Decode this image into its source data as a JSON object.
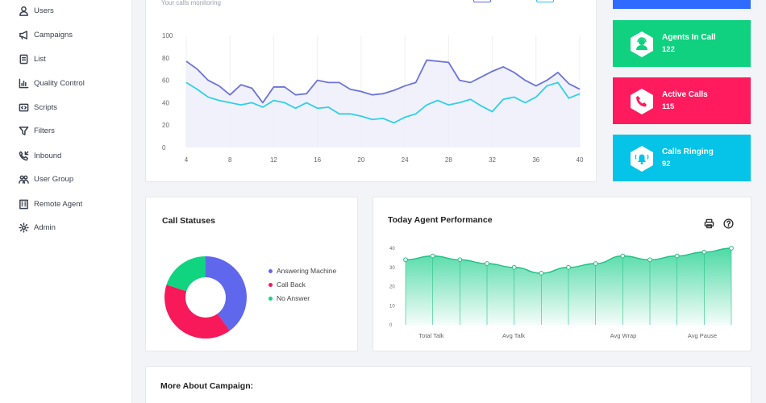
{
  "sidebar": {
    "items": [
      {
        "label": "Users",
        "icon": "user-icon"
      },
      {
        "label": "Campaigns",
        "icon": "megaphone-icon"
      },
      {
        "label": "List",
        "icon": "list-icon"
      },
      {
        "label": "Quality Control",
        "icon": "bar-chart-icon"
      },
      {
        "label": "Scripts",
        "icon": "code-icon"
      },
      {
        "label": "Filters",
        "icon": "filter-icon"
      },
      {
        "label": "Inbound",
        "icon": "phone-in-icon"
      },
      {
        "label": "User Group",
        "icon": "group-icon"
      },
      {
        "label": "Remote Agent",
        "icon": "building-icon"
      },
      {
        "label": "Admin",
        "icon": "gear-icon"
      }
    ]
  },
  "monitor": {
    "subtitle": "Your calls monitoring"
  },
  "tiles": [
    {
      "label": "Agents In Call",
      "value": "122",
      "color": "#0fd17f",
      "icon": "agent-icon"
    },
    {
      "label": "Active Calls",
      "value": "115",
      "color": "#ff1b5e",
      "icon": "phone-icon"
    },
    {
      "label": "Calls Ringing",
      "value": "92",
      "color": "#06c3e8",
      "icon": "bell-ringing-icon"
    }
  ],
  "top_tile_color": "#2f6bff",
  "status": {
    "title": "Call Statuses"
  },
  "performance": {
    "title": "Today Agent Performance"
  },
  "campaign": {
    "title": "More About Campaign:"
  },
  "chart_data": [
    {
      "type": "line",
      "ylim": [
        0,
        100
      ],
      "y_ticks": [
        "0",
        "20",
        "40",
        "60",
        "80",
        "100"
      ],
      "xlim": [
        4,
        40
      ],
      "x_ticks": [
        "4",
        "8",
        "12",
        "16",
        "20",
        "24",
        "28",
        "32",
        "36",
        "40"
      ],
      "grid": "vertical",
      "x": [
        4,
        5,
        6,
        7,
        8,
        9,
        10,
        11,
        12,
        13,
        14,
        15,
        16,
        17,
        18,
        19,
        20,
        21,
        22,
        23,
        24,
        25,
        26,
        27,
        28,
        29,
        30,
        31,
        32,
        33,
        34,
        35,
        36,
        37,
        38,
        39,
        40
      ],
      "series": [
        {
          "color": "#6c74d8",
          "values": [
            77,
            70,
            60,
            55,
            47,
            56,
            53,
            40,
            54,
            54,
            47,
            48,
            60,
            58,
            58,
            52,
            50,
            47,
            48,
            51,
            55,
            58,
            78,
            77,
            76,
            60,
            58,
            63,
            68,
            72,
            67,
            60,
            55,
            60,
            67,
            57,
            52
          ]
        },
        {
          "color": "#2fd0e8",
          "values": [
            58,
            52,
            45,
            42,
            40,
            38,
            40,
            36,
            42,
            40,
            35,
            40,
            35,
            36,
            30,
            30,
            28,
            25,
            26,
            22,
            27,
            30,
            38,
            42,
            38,
            40,
            43,
            37,
            32,
            43,
            45,
            40,
            45,
            55,
            58,
            44,
            48
          ]
        }
      ]
    },
    {
      "type": "pie",
      "title": "Call Statuses",
      "labels": [
        "Answering Machine",
        "Call Back",
        "No Answer"
      ],
      "values": [
        40,
        40,
        20
      ],
      "colors": [
        "#5f67ec",
        "#f7195a",
        "#10d47f"
      ],
      "donut": true
    },
    {
      "type": "area",
      "title": "Today Agent Performance",
      "ylim": [
        0,
        40
      ],
      "y_ticks": [
        "0",
        "10",
        "20",
        "30",
        "40"
      ],
      "x_labels": [
        "Total Talk",
        "Avg Talk",
        "Avg Wrap",
        "Avg Pause"
      ],
      "values": [
        34,
        36,
        34,
        32,
        30,
        27,
        30,
        32,
        36,
        34,
        36,
        38,
        40
      ],
      "color": "#2ed396"
    }
  ]
}
